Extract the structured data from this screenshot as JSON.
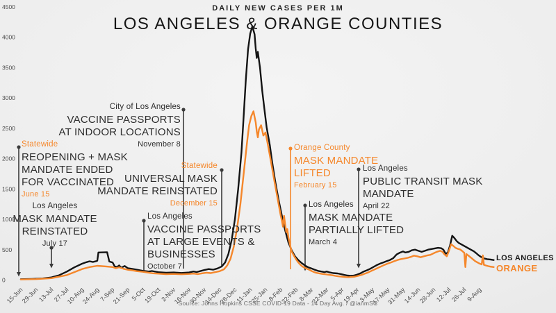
{
  "title": {
    "kicker": "DAILY NEW CASES PER 1M",
    "main": "LOS ANGELES & ORANGE COUNTIES"
  },
  "source": "Source: Johns Hopkins CSSE COVID-19 Data - 14 Day Avg. / @ianmSC",
  "series_labels": {
    "la": "LOS ANGELES",
    "oc": "ORANGE"
  },
  "colors": {
    "la_line": "#141414",
    "orange_accent": "#F5872B",
    "annotation_line": "#3b3b3b",
    "axis_text": "#4a4a4a"
  },
  "annotations": [
    {
      "region": "Statewide",
      "text": "REOPENING + MASK\nMANDATE ENDED\nFOR VACCINATED",
      "date": "June 15"
    },
    {
      "region": "Los Angeles",
      "text": "MASK MANDATE\nREINSTATED",
      "date": "July 17"
    },
    {
      "region": "Los Angeles",
      "text": "VACCINE PASSPORTS\nAT LARGE EVENTS &\nBUSINESSES",
      "date": "October 7"
    },
    {
      "region": "City of Los Angeles",
      "text": "VACCINE PASSPORTS\nAT INDOOR LOCATIONS",
      "date": "November 8"
    },
    {
      "region": "Statewide",
      "text": "UNIVERSAL MASK\nMANDATE REINSTATED",
      "date": "December 15"
    },
    {
      "region": "Orange County",
      "text": "MASK MANDATE\nLIFTED",
      "date": "February 15"
    },
    {
      "region": "Los Angeles",
      "text": "MASK MANDATE\nPARTIALLY LIFTED",
      "date": "March 4"
    },
    {
      "region": "Los Angeles",
      "text": "PUBLIC TRANSIT MASK\nMANDATE",
      "date": "April 22"
    }
  ],
  "chart_data": {
    "type": "line",
    "title": "LOS ANGELES & ORANGE COUNTIES",
    "subtitle": "DAILY NEW CASES PER 1M",
    "ylabel": "",
    "xlabel": "",
    "ylim": [
      0,
      4500
    ],
    "grid": false,
    "x_unit": "days since 15-Jun-2021",
    "y_ticks": [
      0,
      500,
      1000,
      1500,
      2000,
      2500,
      3000,
      3500,
      4000,
      4500
    ],
    "x_ticks": [
      "15-Jun",
      "29-Jun",
      "13-Jul",
      "27-Jul",
      "10-Aug",
      "24-Aug",
      "7-Sep",
      "21-Sep",
      "5-Oct",
      "19-Oct",
      "2-Nov",
      "16-Nov",
      "30-Nov",
      "14-Dec",
      "28-Dec",
      "11-Jan",
      "25-Jan",
      "8-Feb",
      "22-Feb",
      "8-Mar",
      "22-Mar",
      "5-Apr",
      "19-Apr",
      "3-May",
      "17-May",
      "31-May",
      "14-Jun",
      "28-Jun",
      "12-Jul",
      "26-Jul",
      "9-Aug"
    ],
    "series": [
      {
        "name": "LOS ANGELES",
        "color": "#141414",
        "points": [
          [
            0,
            15
          ],
          [
            10,
            20
          ],
          [
            20,
            28
          ],
          [
            28,
            45
          ],
          [
            35,
            80
          ],
          [
            42,
            140
          ],
          [
            49,
            210
          ],
          [
            56,
            270
          ],
          [
            60,
            295
          ],
          [
            63,
            310
          ],
          [
            66,
            298
          ],
          [
            69,
            312
          ],
          [
            70,
            320
          ],
          [
            71,
            455
          ],
          [
            79,
            460
          ],
          [
            81,
            305
          ],
          [
            84,
            290
          ],
          [
            86,
            225
          ],
          [
            88,
            215
          ],
          [
            90,
            242
          ],
          [
            92,
            205
          ],
          [
            95,
            232
          ],
          [
            98,
            195
          ],
          [
            102,
            185
          ],
          [
            106,
            172
          ],
          [
            112,
            152
          ],
          [
            117,
            142
          ],
          [
            120,
            150
          ],
          [
            126,
            130
          ],
          [
            133,
            122
          ],
          [
            140,
            126
          ],
          [
            147,
            118
          ],
          [
            154,
            126
          ],
          [
            158,
            142
          ],
          [
            161,
            133
          ],
          [
            165,
            152
          ],
          [
            168,
            166
          ],
          [
            172,
            182
          ],
          [
            176,
            172
          ],
          [
            180,
            192
          ],
          [
            184,
            225
          ],
          [
            187,
            290
          ],
          [
            190,
            430
          ],
          [
            193,
            660
          ],
          [
            196,
            1000
          ],
          [
            199,
            1500
          ],
          [
            202,
            2100
          ],
          [
            204,
            2700
          ],
          [
            206,
            3300
          ],
          [
            208,
            3800
          ],
          [
            210,
            4060
          ],
          [
            212,
            4180
          ],
          [
            214,
            4050
          ],
          [
            215,
            3820
          ],
          [
            216,
            3660
          ],
          [
            217,
            3760
          ],
          [
            219,
            3500
          ],
          [
            221,
            3120
          ],
          [
            223,
            2820
          ],
          [
            225,
            2520
          ],
          [
            228,
            2220
          ],
          [
            230,
            1960
          ],
          [
            233,
            1620
          ],
          [
            236,
            1320
          ],
          [
            239,
            1060
          ],
          [
            242,
            820
          ],
          [
            245,
            620
          ],
          [
            248,
            490
          ],
          [
            251,
            395
          ],
          [
            254,
            332
          ],
          [
            257,
            282
          ],
          [
            259,
            256
          ],
          [
            261,
            232
          ],
          [
            263,
            212
          ],
          [
            266,
            192
          ],
          [
            269,
            172
          ],
          [
            272,
            152
          ],
          [
            275,
            142
          ],
          [
            278,
            132
          ],
          [
            280,
            142
          ],
          [
            283,
            126
          ],
          [
            286,
            116
          ],
          [
            290,
            110
          ],
          [
            293,
            100
          ],
          [
            296,
            86
          ],
          [
            299,
            76
          ],
          [
            302,
            70
          ],
          [
            305,
            76
          ],
          [
            308,
            92
          ],
          [
            311,
            112
          ],
          [
            314,
            142
          ],
          [
            317,
            162
          ],
          [
            320,
            188
          ],
          [
            323,
            218
          ],
          [
            326,
            248
          ],
          [
            329,
            272
          ],
          [
            332,
            292
          ],
          [
            335,
            312
          ],
          [
            338,
            332
          ],
          [
            341,
            362
          ],
          [
            344,
            422
          ],
          [
            347,
            452
          ],
          [
            350,
            472
          ],
          [
            352,
            455
          ],
          [
            355,
            465
          ],
          [
            358,
            492
          ],
          [
            361,
            502
          ],
          [
            364,
            482
          ],
          [
            367,
            465
          ],
          [
            370,
            482
          ],
          [
            373,
            502
          ],
          [
            376,
            512
          ],
          [
            379,
            522
          ],
          [
            382,
            532
          ],
          [
            385,
            525
          ],
          [
            387,
            500
          ],
          [
            389,
            432
          ],
          [
            391,
            455
          ],
          [
            393,
            575
          ],
          [
            395,
            730
          ],
          [
            397,
            692
          ],
          [
            399,
            645
          ],
          [
            401,
            612
          ],
          [
            403,
            592
          ],
          [
            406,
            562
          ],
          [
            409,
            532
          ],
          [
            412,
            502
          ],
          [
            415,
            472
          ],
          [
            417,
            442
          ],
          [
            419,
            412
          ],
          [
            421,
            385
          ],
          [
            424,
            358
          ],
          [
            427,
            345
          ],
          [
            430,
            340
          ],
          [
            433,
            330
          ]
        ]
      },
      {
        "name": "ORANGE",
        "color": "#F5872B",
        "points": [
          [
            0,
            10
          ],
          [
            14,
            16
          ],
          [
            28,
            32
          ],
          [
            42,
            82
          ],
          [
            49,
            132
          ],
          [
            56,
            182
          ],
          [
            63,
            215
          ],
          [
            70,
            235
          ],
          [
            77,
            226
          ],
          [
            84,
            215
          ],
          [
            87,
            196
          ],
          [
            90,
            212
          ],
          [
            94,
            186
          ],
          [
            98,
            170
          ],
          [
            102,
            160
          ],
          [
            106,
            148
          ],
          [
            112,
            136
          ],
          [
            117,
            122
          ],
          [
            121,
            112
          ],
          [
            126,
            106
          ],
          [
            133,
            98
          ],
          [
            140,
            102
          ],
          [
            147,
            96
          ],
          [
            154,
            102
          ],
          [
            158,
            108
          ],
          [
            162,
            100
          ],
          [
            166,
            112
          ],
          [
            170,
            122
          ],
          [
            174,
            116
          ],
          [
            178,
            132
          ],
          [
            182,
            146
          ],
          [
            186,
            178
          ],
          [
            189,
            242
          ],
          [
            192,
            352
          ],
          [
            195,
            552
          ],
          [
            198,
            852
          ],
          [
            201,
            1252
          ],
          [
            204,
            1752
          ],
          [
            207,
            2252
          ],
          [
            209,
            2552
          ],
          [
            211,
            2702
          ],
          [
            213,
            2780
          ],
          [
            215,
            2600
          ],
          [
            216,
            2452
          ],
          [
            217,
            2352
          ],
          [
            218,
            2482
          ],
          [
            220,
            2552
          ],
          [
            222,
            2382
          ],
          [
            224,
            2432
          ],
          [
            226,
            2252
          ],
          [
            228,
            2052
          ],
          [
            230,
            1852
          ],
          [
            233,
            1552
          ],
          [
            236,
            1252
          ],
          [
            238,
            1060
          ],
          [
            239,
            980
          ],
          [
            240,
            880
          ],
          [
            241,
            1060
          ],
          [
            242,
            920
          ],
          [
            243,
            790
          ],
          [
            244,
            840
          ],
          [
            245,
            700
          ],
          [
            246,
            620
          ],
          [
            247,
            540
          ],
          [
            248,
            472
          ],
          [
            250,
            402
          ],
          [
            252,
            342
          ],
          [
            254,
            292
          ],
          [
            256,
            252
          ],
          [
            258,
            222
          ],
          [
            260,
            202
          ],
          [
            262,
            186
          ],
          [
            264,
            172
          ],
          [
            266,
            152
          ],
          [
            268,
            136
          ],
          [
            270,
            122
          ],
          [
            273,
            112
          ],
          [
            276,
            102
          ],
          [
            279,
            96
          ],
          [
            282,
            88
          ],
          [
            285,
            80
          ],
          [
            288,
            70
          ],
          [
            291,
            62
          ],
          [
            294,
            56
          ],
          [
            297,
            50
          ],
          [
            300,
            48
          ],
          [
            303,
            52
          ],
          [
            306,
            58
          ],
          [
            309,
            72
          ],
          [
            312,
            86
          ],
          [
            315,
            106
          ],
          [
            318,
            126
          ],
          [
            321,
            152
          ],
          [
            324,
            176
          ],
          [
            327,
            202
          ],
          [
            330,
            226
          ],
          [
            333,
            252
          ],
          [
            336,
            272
          ],
          [
            339,
            292
          ],
          [
            342,
            312
          ],
          [
            345,
            332
          ],
          [
            348,
            346
          ],
          [
            351,
            356
          ],
          [
            354,
            366
          ],
          [
            357,
            382
          ],
          [
            360,
            402
          ],
          [
            363,
            392
          ],
          [
            366,
            376
          ],
          [
            369,
            392
          ],
          [
            372,
            406
          ],
          [
            375,
            416
          ],
          [
            378,
            442
          ],
          [
            381,
            466
          ],
          [
            384,
            482
          ],
          [
            386,
            466
          ],
          [
            388,
            422
          ],
          [
            390,
            392
          ],
          [
            392,
            482
          ],
          [
            394,
            592
          ],
          [
            396,
            562
          ],
          [
            398,
            532
          ],
          [
            400,
            516
          ],
          [
            402,
            506
          ],
          [
            403,
            495
          ],
          [
            404,
            480
          ],
          [
            405,
            465
          ],
          [
            406,
            450
          ],
          [
            407,
            215
          ],
          [
            408,
            430
          ],
          [
            410,
            400
          ],
          [
            412,
            372
          ],
          [
            414,
            342
          ],
          [
            416,
            312
          ],
          [
            418,
            292
          ],
          [
            420,
            272
          ],
          [
            422,
            258
          ],
          [
            423,
            408
          ],
          [
            424,
            252
          ],
          [
            426,
            240
          ],
          [
            428,
            230
          ],
          [
            430,
            222
          ],
          [
            433,
            215
          ]
        ]
      }
    ]
  }
}
